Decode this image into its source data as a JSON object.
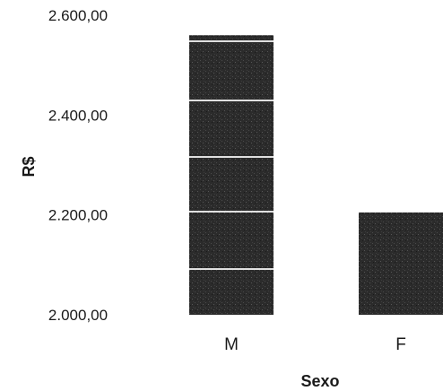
{
  "chart_data": {
    "type": "bar",
    "title": "",
    "xlabel": "Sexo",
    "ylabel": "R$",
    "categories": [
      "M",
      "F"
    ],
    "values": [
      2560,
      2205
    ],
    "ylim": [
      2000,
      2600
    ],
    "yticks": [
      2000,
      2200,
      2400,
      2600
    ],
    "ytick_labels": [
      "2.000,00",
      "2.200,00",
      "2.400,00",
      "2.600,00"
    ],
    "grid": false,
    "legend": "none",
    "bar_color": "#2b2b2b"
  }
}
